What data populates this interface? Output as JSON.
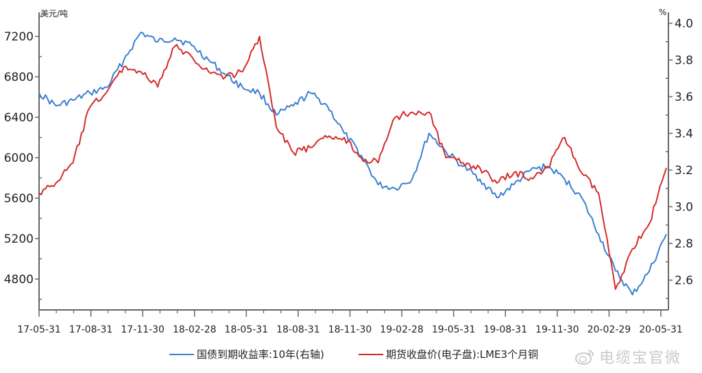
{
  "chart_data": {
    "type": "line",
    "title": "",
    "xlabel": "",
    "ylabel_left": "美元/吨",
    "ylabel_right": "%",
    "ylim_left": [
      4400,
      7400
    ],
    "ylim_right": [
      2.45,
      4.05
    ],
    "yticks_left": [
      4800,
      5200,
      5600,
      6000,
      6400,
      6800,
      7200
    ],
    "yticks_right": [
      "2.6",
      "2.8",
      "3.0",
      "3.2",
      "3.4",
      "3.6",
      "3.8",
      "4.0"
    ],
    "xtick_labels": [
      "17-05-31",
      "17-08-31",
      "17-11-30",
      "18-02-28",
      "18-05-31",
      "18-08-31",
      "18-11-30",
      "19-02-28",
      "19-05-31",
      "19-08-31",
      "19-11-30",
      "20-02-29",
      "20-05-31"
    ],
    "x": [
      "17-05",
      "17-06",
      "17-07",
      "17-08",
      "17-09",
      "17-10",
      "17-11",
      "17-12",
      "18-01",
      "18-02",
      "18-03",
      "18-04",
      "18-05",
      "18-06",
      "18-07",
      "18-08",
      "18-09",
      "18-10",
      "18-11",
      "18-12",
      "19-01",
      "19-02",
      "19-03",
      "19-04",
      "19-05",
      "19-06",
      "19-07",
      "19-08",
      "19-09",
      "19-10",
      "19-11",
      "19-12",
      "20-01",
      "20-02",
      "20-03",
      "20-04",
      "20-05",
      "20-06"
    ],
    "grid": false,
    "legend_position": "bottom",
    "series": [
      {
        "name": "国债到期收益率:10年(右轴)",
        "axis": "right",
        "color": "#3a7fd0",
        "values": [
          3.62,
          3.55,
          3.58,
          3.62,
          3.65,
          3.8,
          3.95,
          3.9,
          3.92,
          3.88,
          3.8,
          3.72,
          3.65,
          3.62,
          3.5,
          3.55,
          3.62,
          3.55,
          3.4,
          3.28,
          3.12,
          3.1,
          3.15,
          3.4,
          3.3,
          3.22,
          3.15,
          3.05,
          3.12,
          3.2,
          3.22,
          3.15,
          3.05,
          2.85,
          2.65,
          2.52,
          2.65,
          2.85
        ]
      },
      {
        "name": "期货收盘价(电子盘):LME3个月铜",
        "axis": "left",
        "color": "#d42a2a",
        "values": [
          5650,
          5750,
          5950,
          6500,
          6650,
          6900,
          6850,
          6700,
          7100,
          7000,
          6850,
          6800,
          6850,
          7200,
          6300,
          6050,
          6100,
          6200,
          6200,
          6000,
          5950,
          6400,
          6450,
          6450,
          6000,
          5950,
          5900,
          5750,
          5850,
          5800,
          5900,
          6200,
          5850,
          5650,
          4700,
          5100,
          5350,
          5900
        ]
      }
    ]
  },
  "legend": {
    "items": [
      {
        "label": "国债到期收益率:10年(右轴)",
        "color": "#3a7fd0"
      },
      {
        "label": "期货收盘价(电子盘):LME3个月铜",
        "color": "#d42a2a"
      }
    ]
  },
  "watermark": {
    "text": "电缆宝官微"
  }
}
